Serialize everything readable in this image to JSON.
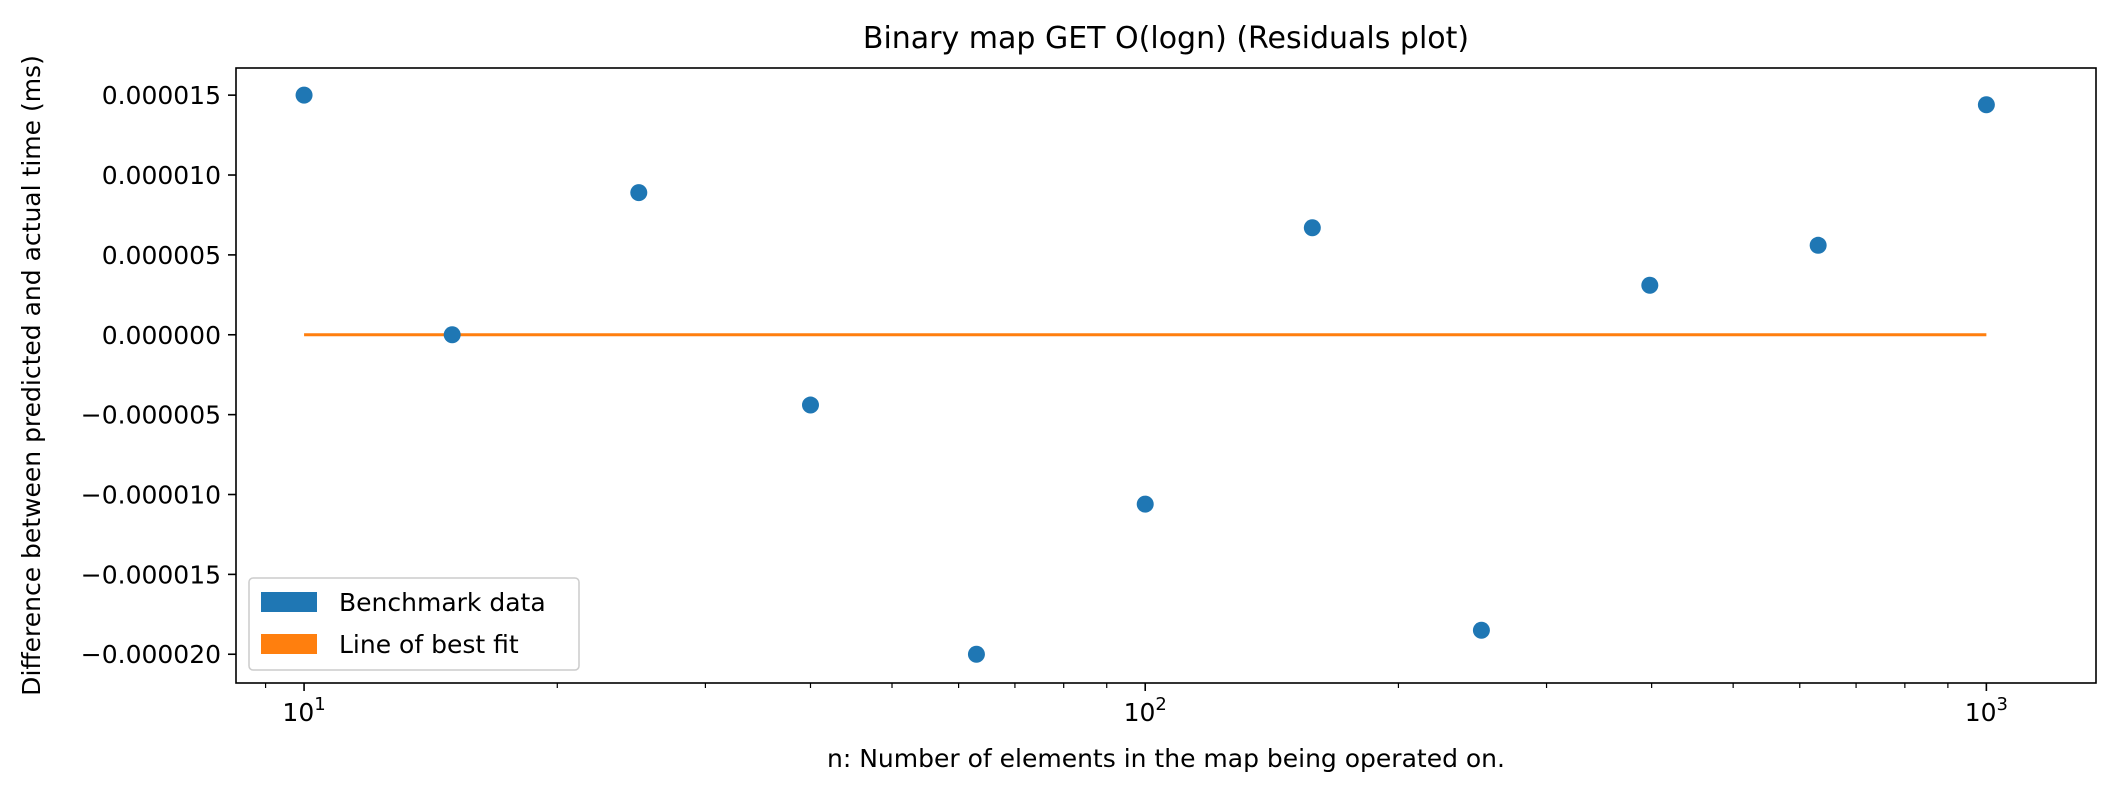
{
  "chart_data": {
    "type": "scatter",
    "title": "Binary map GET O(logn)  (Residuals plot)",
    "xlabel": "n: Number of elements in the map being operated on.",
    "ylabel": "Difference between predicted and actual time (ms)",
    "xscale": "log",
    "xlim": [
      8.3,
      1350
    ],
    "ylim": [
      -2.18e-05,
      1.67e-05
    ],
    "x_ticks": [
      {
        "value": 10,
        "base": "10",
        "exp": "1"
      },
      {
        "value": 100,
        "base": "10",
        "exp": "2"
      },
      {
        "value": 1000,
        "base": "10",
        "exp": "3"
      }
    ],
    "y_ticks": [
      {
        "value": 1.5e-05,
        "label": "0.000015"
      },
      {
        "value": 1e-05,
        "label": "0.000010"
      },
      {
        "value": 5e-06,
        "label": "0.000005"
      },
      {
        "value": 0,
        "label": "0.000000"
      },
      {
        "value": -5e-06,
        "label": "−0.000005"
      },
      {
        "value": -1e-05,
        "label": "−0.000010"
      },
      {
        "value": -1.5e-05,
        "label": "−0.000015"
      },
      {
        "value": -2e-05,
        "label": "−0.000020"
      }
    ],
    "series": [
      {
        "name": "Benchmark data",
        "kind": "scatter",
        "color": "#1f77b4",
        "points": [
          {
            "x": 10,
            "y": 1.5e-05
          },
          {
            "x": 15,
            "y": 0.0
          },
          {
            "x": 25,
            "y": 8.9e-06
          },
          {
            "x": 40,
            "y": -4.4e-06
          },
          {
            "x": 63,
            "y": -2e-05
          },
          {
            "x": 100,
            "y": -1.06e-05
          },
          {
            "x": 158,
            "y": 6.7e-06
          },
          {
            "x": 251,
            "y": -1.85e-05
          },
          {
            "x": 398,
            "y": 3.1e-06
          },
          {
            "x": 631,
            "y": 5.6e-06
          },
          {
            "x": 1000,
            "y": 1.44e-05
          }
        ]
      },
      {
        "name": "Line of best fit",
        "kind": "line",
        "color": "#ff7f0e",
        "points": [
          {
            "x": 10,
            "y": 0
          },
          {
            "x": 1000,
            "y": 0
          }
        ]
      }
    ],
    "legend": {
      "position": "lower-left",
      "entries": [
        {
          "label": "Benchmark data",
          "color": "#1f77b4"
        },
        {
          "label": "Line of best fit",
          "color": "#ff7f0e"
        }
      ]
    },
    "grid": false
  }
}
